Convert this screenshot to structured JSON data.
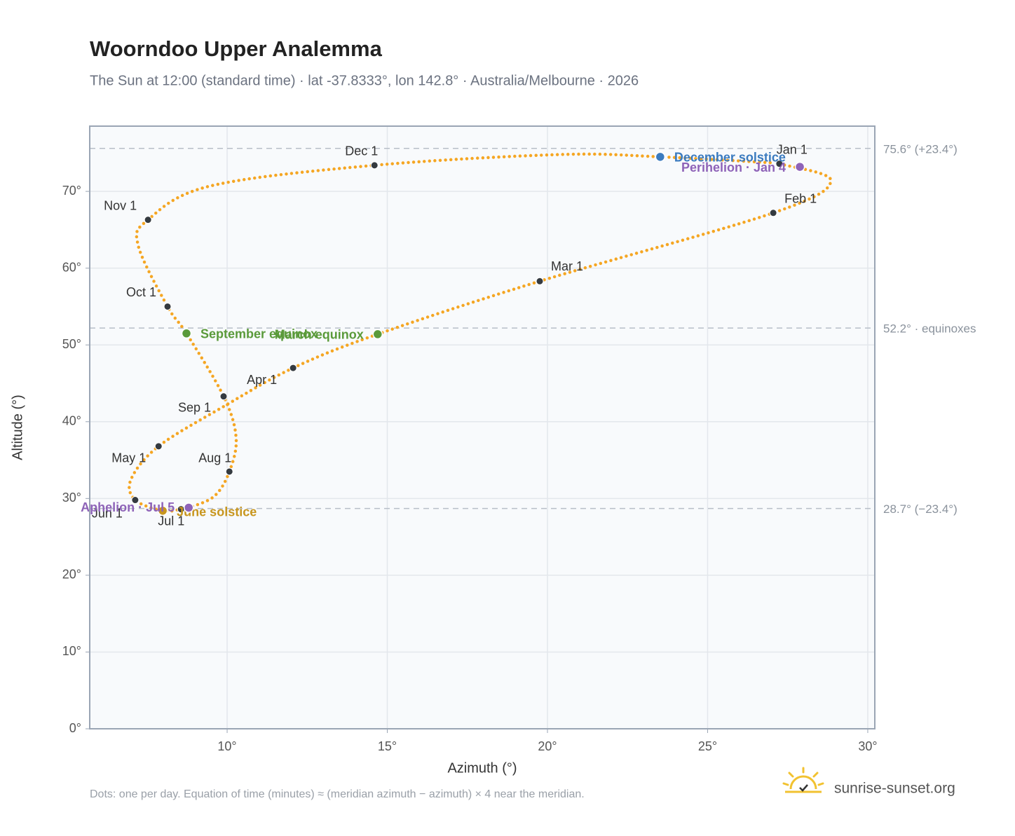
{
  "chart_data": {
    "type": "analemma",
    "title": "Woorndoo Upper Analemma",
    "subtitle": "The Sun at 12:00 (standard time) · lat -37.8333°, lon 142.8° · Australia/Melbourne · 2026",
    "x_label": "Azimuth (°)",
    "y_label": "Altitude (°)",
    "xlim": [
      5.71,
      30.22
    ],
    "ylim": [
      0,
      78.5
    ],
    "xticks": [
      {
        "value": 10,
        "label": "10°"
      },
      {
        "value": 15,
        "label": "15°"
      },
      {
        "value": 20,
        "label": "20°"
      },
      {
        "value": 25,
        "label": "25°"
      },
      {
        "value": 30,
        "label": "30°"
      }
    ],
    "yticks": [
      {
        "value": 0,
        "label": "0°"
      },
      {
        "value": 10,
        "label": "10°"
      },
      {
        "value": 20,
        "label": "20°"
      },
      {
        "value": 30,
        "label": "30°"
      },
      {
        "value": 40,
        "label": "40°"
      },
      {
        "value": 50,
        "label": "50°"
      },
      {
        "value": 60,
        "label": "60°"
      },
      {
        "value": 70,
        "label": "70°"
      }
    ],
    "grid": true,
    "color": "#f5a623",
    "x": [
      27.24,
      28.85,
      27.05,
      19.76,
      14.7,
      12.06,
      9.9,
      7.86,
      7.0,
      7.13,
      7.99,
      8.56,
      8.8,
      9.6,
      10.07,
      10.28,
      9.89,
      8.73,
      8.14,
      7.22,
      7.53,
      9.47,
      14.6,
      20.4,
      23.52,
      27.1
    ],
    "values": [
      73.6,
      71.4,
      67.2,
      58.3,
      51.4,
      47.0,
      42.0,
      36.8,
      32.5,
      29.8,
      28.4,
      28.6,
      28.8,
      30.3,
      33.5,
      37.9,
      43.3,
      51.5,
      55.0,
      63.0,
      66.3,
      70.7,
      73.4,
      74.8,
      74.5,
      73.7
    ],
    "reference_lines": [
      {
        "value": 75.6,
        "label": "75.6° (+23.4°)"
      },
      {
        "value": 52.2,
        "label": "52.2° · equinoxes"
      },
      {
        "value": 28.7,
        "label": "28.7° (−23.4°)"
      }
    ],
    "months": [
      {
        "label": "Jan 1",
        "x": 27.24,
        "y": 73.6
      },
      {
        "label": "Feb 1",
        "x": 27.05,
        "y": 67.2
      },
      {
        "label": "Mar 1",
        "x": 19.76,
        "y": 58.3
      },
      {
        "label": "Apr 1",
        "x": 12.06,
        "y": 47.0
      },
      {
        "label": "May 1",
        "x": 7.86,
        "y": 36.8
      },
      {
        "label": "Jun 1",
        "x": 7.13,
        "y": 29.8
      },
      {
        "label": "Jul 1",
        "x": 8.56,
        "y": 28.6
      },
      {
        "label": "Aug 1",
        "x": 10.07,
        "y": 33.5
      },
      {
        "label": "Sep 1",
        "x": 9.89,
        "y": 43.3
      },
      {
        "label": "Oct 1",
        "x": 8.14,
        "y": 55.0
      },
      {
        "label": "Nov 1",
        "x": 7.53,
        "y": 66.3
      },
      {
        "label": "Dec 1",
        "x": 14.6,
        "y": 73.4
      }
    ],
    "month_color": "#343a40",
    "events": [
      {
        "label": "December solstice",
        "x": 23.52,
        "y": 74.5,
        "color": "#3b7bbf"
      },
      {
        "label": "Perihelion · Jan 4",
        "x": 27.88,
        "y": 73.2,
        "color": "#8e63b8"
      },
      {
        "label": "March equinox",
        "x": 14.7,
        "y": 51.4,
        "color": "#5a9a3a"
      },
      {
        "label": "September equinox",
        "x": 8.73,
        "y": 51.5,
        "color": "#5a9a3a"
      },
      {
        "label": "June solstice",
        "x": 7.99,
        "y": 28.4,
        "color": "#c8961e"
      },
      {
        "label": "Aphelion · Jul 5",
        "x": 8.8,
        "y": 28.8,
        "color": "#8e63b8"
      }
    ],
    "note": "Dots: one per day. Equation of time (minutes) ≈ (meridian azimuth − azimuth) × 4 near the meridian.",
    "brand": "sunrise-sunset.org"
  }
}
